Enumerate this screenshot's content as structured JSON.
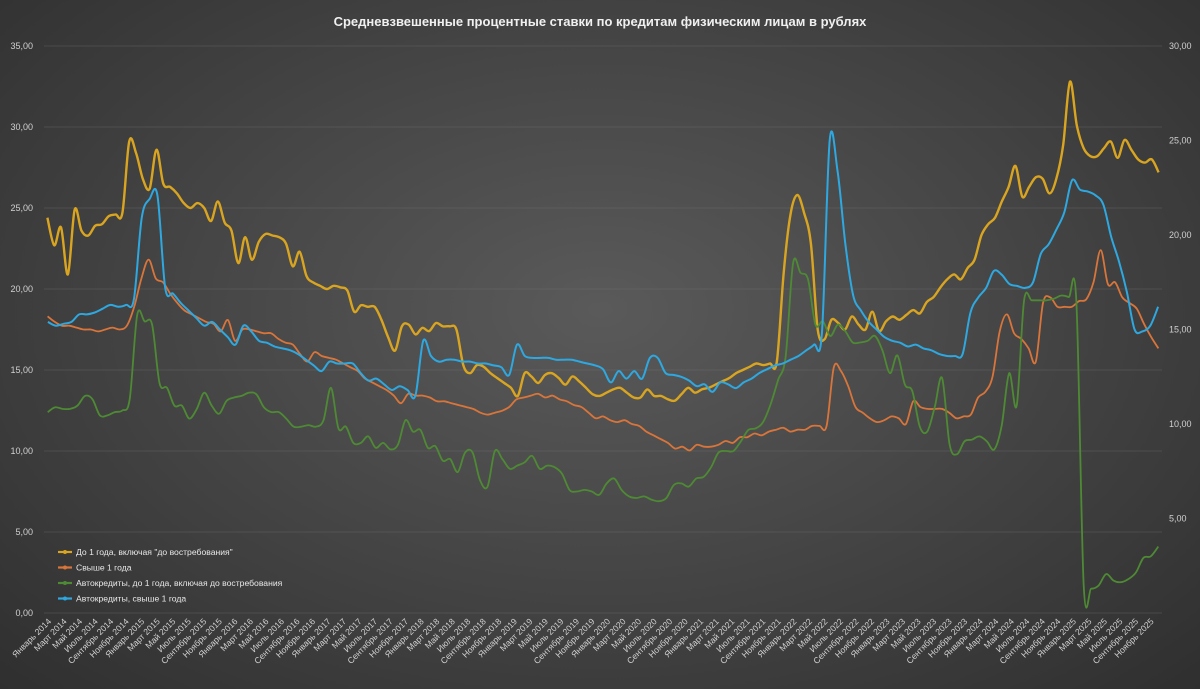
{
  "chart_data": {
    "type": "line",
    "title": "Средневзвешенные процентные ставки по кредитам физическим лицам в рублях",
    "x_labels": [
      "Январь 2014",
      "Март 2014",
      "Май 2014",
      "Июль 2014",
      "Сентябрь 2014",
      "Ноябрь 2014",
      "Январь 2015",
      "Март 2015",
      "Май 2015",
      "Июль 2015",
      "Сентябрь 2015",
      "Ноябрь 2015",
      "Январь 2016",
      "Март 2016",
      "Май 2016",
      "Июль 2016",
      "Сентябрь 2016",
      "Ноябрь 2016",
      "Январь 2017",
      "Март 2017",
      "Май 2017",
      "Июль 2017",
      "Сентябрь 2017",
      "Ноябрь 2017",
      "Январь 2018",
      "Март 2018",
      "Май 2018",
      "Июль 2018",
      "Сентябрь 2018",
      "Ноябрь 2018",
      "Январь 2019",
      "Март 2019",
      "Май 2019",
      "Июль 2019",
      "Сентябрь 2019",
      "Ноябрь 2019",
      "Январь 2020",
      "Март 2020",
      "Май 2020",
      "Июль 2020",
      "Сентябрь 2020",
      "Ноябрь 2020",
      "Январь 2021",
      "Март 2021",
      "Май 2021",
      "Июль 2021",
      "Сентябрь 2021",
      "Ноябрь 2021",
      "Январь 2022",
      "Март 2022",
      "Май 2022",
      "Июль 2022",
      "Сентябрь 2022",
      "Ноябрь 2022",
      "Январь 2023",
      "Март 2023",
      "Май 2023",
      "Июль 2023",
      "Сентябрь 2023",
      "Ноябрь 2023",
      "Январь 2024",
      "Март 2024",
      "Май 2024",
      "Июль 2024",
      "Сентябрь 2024",
      "Ноябрь 2024",
      "Январь 2025",
      "Март 2025",
      "Май 2025",
      "Июль 2025",
      "Сентябрь 2025",
      "Ноябрь 2025"
    ],
    "left_axis": {
      "min": 0,
      "max": 35,
      "ticks": [
        "0,00",
        "5,00",
        "10,00",
        "15,00",
        "20,00",
        "25,00",
        "30,00",
        "35,00"
      ]
    },
    "right_axis": {
      "min": 0,
      "max": 30,
      "ticks": [
        "5,00",
        "10,00",
        "15,00",
        "20,00",
        "25,00",
        "30,00"
      ]
    },
    "grid": true,
    "legend_position": "bottom-left",
    "series": [
      {
        "name": "До 1 года, включая \"до востребования\"",
        "axis": "left",
        "color": "#d9a521",
        "values": [
          24.4,
          22.7,
          23.8,
          20.9,
          24.9,
          23.6,
          23.3,
          23.9,
          24.0,
          24.5,
          24.6,
          24.7,
          29.1,
          28.4,
          26.8,
          26.2,
          28.6,
          26.5,
          26.3,
          25.9,
          25.3,
          25.0,
          25.3,
          25.0,
          24.2,
          25.4,
          24.1,
          23.6,
          21.6,
          23.2,
          21.8,
          22.9,
          23.4,
          23.3,
          23.2,
          22.8,
          21.4,
          22.3,
          20.8,
          20.4,
          20.2,
          20.0,
          20.2,
          20.1,
          19.9,
          18.6,
          19.0,
          18.9,
          18.9,
          18.1,
          17.0,
          16.2,
          17.7,
          17.8,
          17.2,
          17.6,
          17.4,
          17.9,
          17.7,
          17.7,
          17.5,
          15.3,
          14.8,
          15.3,
          15.2,
          14.8,
          14.5,
          14.2,
          13.9,
          13.4,
          14.8,
          14.6,
          14.2,
          14.7,
          14.8,
          14.5,
          14.1,
          14.6,
          14.3,
          13.9,
          13.5,
          13.4,
          13.6,
          13.8,
          13.9,
          13.6,
          13.3,
          13.3,
          13.8,
          13.4,
          13.4,
          13.2,
          13.1,
          13.5,
          13.9,
          13.6,
          13.8,
          13.9,
          14.1,
          14.3,
          14.5,
          14.8,
          15.0,
          15.2,
          15.4,
          15.3,
          15.4,
          15.5,
          21.0,
          24.6,
          25.8,
          24.7,
          22.8,
          17.5,
          16.9,
          18.1,
          17.9,
          17.5,
          18.3,
          17.8,
          17.5,
          18.6,
          17.4,
          18.0,
          18.3,
          18.1,
          18.4,
          18.7,
          18.5,
          19.2,
          19.5,
          20.1,
          20.6,
          20.9,
          20.6,
          21.3,
          21.8,
          23.3,
          24.0,
          24.4,
          25.4,
          26.3,
          27.6,
          25.7,
          26.3,
          26.9,
          26.8,
          25.9,
          26.8,
          28.9,
          32.8,
          30.1,
          28.7,
          28.2,
          28.2,
          28.7,
          29.1,
          28.1,
          29.2,
          28.6,
          28.0,
          27.8,
          28.0,
          27.2
        ]
      },
      {
        "name": "Свыше 1 года",
        "axis": "right",
        "color": "#d9753a",
        "values": [
          15.7,
          15.4,
          15.2,
          15.2,
          15.1,
          15.0,
          15.0,
          14.9,
          15.0,
          15.1,
          15.0,
          15.2,
          16.2,
          17.7,
          18.7,
          17.7,
          17.5,
          16.9,
          16.4,
          16.0,
          15.8,
          15.6,
          15.4,
          15.3,
          14.9,
          15.5,
          14.4,
          15.0,
          15.0,
          14.9,
          14.8,
          14.8,
          14.5,
          14.3,
          14.2,
          13.7,
          13.3,
          13.8,
          13.6,
          13.5,
          13.4,
          13.2,
          13.0,
          12.8,
          12.4,
          12.2,
          12.0,
          11.8,
          11.5,
          11.1,
          11.6,
          11.5,
          11.5,
          11.4,
          11.2,
          11.2,
          11.1,
          11.0,
          10.9,
          10.8,
          10.6,
          10.5,
          10.6,
          10.7,
          10.9,
          11.3,
          11.4,
          11.5,
          11.6,
          11.4,
          11.5,
          11.3,
          11.2,
          11.0,
          10.9,
          10.6,
          10.3,
          10.4,
          10.2,
          10.1,
          10.2,
          10.0,
          9.9,
          9.6,
          9.4,
          9.2,
          9.0,
          8.7,
          8.8,
          8.6,
          8.9,
          8.8,
          8.8,
          8.9,
          9.1,
          9.0,
          9.3,
          9.3,
          9.5,
          9.4,
          9.6,
          9.7,
          9.8,
          9.6,
          9.7,
          9.7,
          9.9,
          9.9,
          9.9,
          13.0,
          12.8,
          12.0,
          10.9,
          10.6,
          10.3,
          10.1,
          10.2,
          10.4,
          10.3,
          10.0,
          11.2,
          10.9,
          10.8,
          10.8,
          10.8,
          10.6,
          10.3,
          10.4,
          10.5,
          11.4,
          11.7,
          12.5,
          14.9,
          15.8,
          14.8,
          14.5,
          14.0,
          13.3,
          16.4,
          16.7,
          16.2,
          16.2,
          16.2,
          16.5,
          16.6,
          17.5,
          19.2,
          17.4,
          17.5,
          16.7,
          16.4,
          16.1,
          15.3,
          14.6,
          14.0
        ]
      },
      {
        "name": "Автокредиты, до 1 года, включая до востребования",
        "axis": "left",
        "color": "#4e8a34",
        "values": [
          12.4,
          12.7,
          12.6,
          12.6,
          12.8,
          13.4,
          13.2,
          12.2,
          12.2,
          12.4,
          12.5,
          13.2,
          18.4,
          18.0,
          17.8,
          14.2,
          13.9,
          12.8,
          12.8,
          12.0,
          12.6,
          13.6,
          12.8,
          12.3,
          13.1,
          13.3,
          13.4,
          13.6,
          13.5,
          12.7,
          12.4,
          12.4,
          12.0,
          11.5,
          11.5,
          11.6,
          11.5,
          11.9,
          13.9,
          11.4,
          11.5,
          10.5,
          10.5,
          10.9,
          10.2,
          10.5,
          10.1,
          10.4,
          11.9,
          11.2,
          11.3,
          10.2,
          10.3,
          9.4,
          9.5,
          8.7,
          9.9,
          9.9,
          8.2,
          7.8,
          10.0,
          9.5,
          8.9,
          9.1,
          9.3,
          9.7,
          8.9,
          9.1,
          9.0,
          8.6,
          7.6,
          7.5,
          7.6,
          7.5,
          7.3,
          8.0,
          8.3,
          7.6,
          7.2,
          7.1,
          7.2,
          7.0,
          6.9,
          7.1,
          7.9,
          8.0,
          7.8,
          8.3,
          8.4,
          9.0,
          9.9,
          10.0,
          10.0,
          10.6,
          11.3,
          11.4,
          11.8,
          12.9,
          14.4,
          15.8,
          21.6,
          21.0,
          20.6,
          17.8,
          18.0,
          17.1,
          17.8,
          17.4,
          16.7,
          16.7,
          16.8,
          17.1,
          16.2,
          14.8,
          15.9,
          14.1,
          13.7,
          11.5,
          11.2,
          12.7,
          14.5,
          10.4,
          9.8,
          10.6,
          10.7,
          10.9,
          10.6,
          10.1,
          11.6,
          14.8,
          12.8,
          19.3,
          19.3,
          19.3,
          19.3,
          19.4,
          19.6,
          19.5,
          19.3,
          1.7,
          1.5,
          1.7,
          2.4,
          2.0,
          1.9,
          2.1,
          2.5,
          3.4,
          3.5,
          4.1
        ]
      },
      {
        "name": "Автокредиты, свыше 1 года",
        "axis": "right",
        "color": "#2ea8e0",
        "values": [
          15.4,
          15.2,
          15.3,
          15.4,
          15.8,
          15.8,
          15.9,
          16.1,
          16.3,
          16.2,
          16.3,
          16.6,
          20.9,
          21.9,
          22.1,
          17.2,
          16.9,
          16.4,
          16.0,
          15.6,
          15.2,
          15.4,
          15.0,
          14.6,
          14.2,
          15.2,
          14.9,
          14.4,
          14.3,
          14.1,
          14.0,
          13.9,
          13.7,
          13.4,
          13.1,
          12.8,
          13.3,
          13.2,
          13.2,
          13.2,
          12.7,
          12.3,
          12.4,
          12.1,
          11.8,
          12.0,
          11.8,
          11.5,
          14.4,
          13.6,
          13.3,
          13.4,
          13.4,
          13.3,
          13.3,
          13.2,
          13.2,
          13.1,
          13.0,
          12.6,
          14.2,
          13.6,
          13.5,
          13.5,
          13.5,
          13.4,
          13.4,
          13.4,
          13.3,
          13.2,
          13.1,
          12.9,
          12.2,
          12.8,
          12.4,
          12.8,
          12.4,
          13.5,
          13.5,
          12.7,
          12.6,
          12.5,
          12.3,
          12.0,
          12.1,
          11.7,
          12.2,
          12.1,
          11.9,
          12.2,
          12.4,
          12.7,
          12.9,
          13.1,
          13.2,
          13.4,
          13.6,
          13.9,
          14.2,
          14.8,
          25.0,
          23.4,
          19.5,
          16.8,
          16.0,
          15.4,
          15.0,
          14.6,
          14.4,
          14.3,
          14.1,
          14.2,
          14.0,
          13.9,
          13.7,
          13.6,
          13.6,
          13.7,
          15.9,
          16.7,
          17.2,
          18.1,
          17.9,
          17.4,
          17.3,
          17.2,
          17.5,
          19.0,
          19.5,
          20.3,
          21.2,
          22.9,
          22.4,
          22.3,
          22.1,
          21.6,
          19.9,
          18.6,
          17.0,
          15.0,
          14.9,
          15.2,
          16.2
        ]
      }
    ]
  }
}
